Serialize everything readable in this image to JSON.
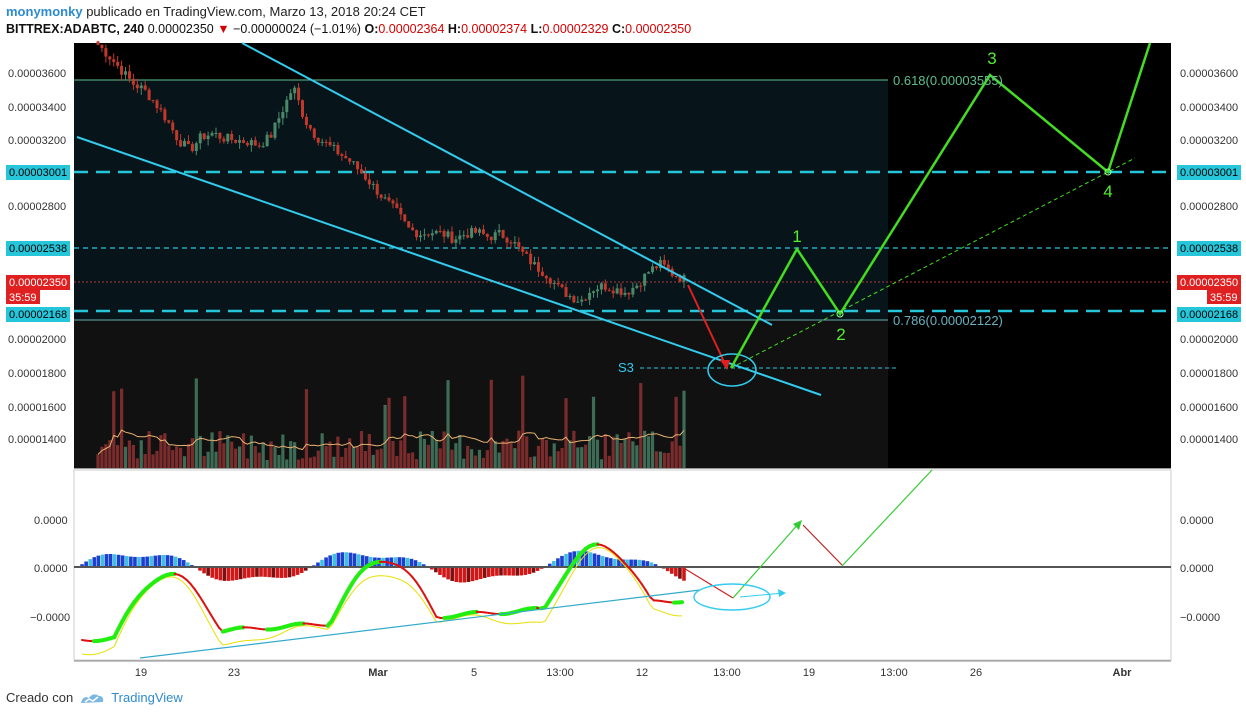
{
  "header": {
    "user": "monymonky",
    "published": "publicado en TradingView.com, Marzo 13, 2018 20:24 CET",
    "symbol": "BITTREX:ADABTC, 240",
    "last": "0.00002350",
    "change": "−0.00000024 (−1.01%)",
    "o_label": "O:",
    "o": "0.00002364",
    "h_label": "H:",
    "h": "0.00002374",
    "l_label": "L:",
    "l": "0.00002329",
    "c_label": "C:",
    "c": "0.00002350"
  },
  "footer": {
    "created_with": "Creado con",
    "brand": "TradingView"
  },
  "colors": {
    "up": "#4a8a6a",
    "down": "#c0392b",
    "cyan": "#26c6da",
    "green": "#2ecc40",
    "trend": "#33ccee",
    "dark_bg": "#000000",
    "panel_bg": "#07151b"
  },
  "chart_data": {
    "type": "line",
    "price_axis": {
      "labels": [
        "0.00003600",
        "0.00003400",
        "0.00003200",
        "0.00002800",
        "0.00002000",
        "0.00001800",
        "0.00001600",
        "0.00001400"
      ],
      "range": [
        1.22e-05,
        3.76e-05
      ]
    },
    "marked_prices": {
      "level_3001": "0.00003001",
      "level_2538": "0.00002538",
      "current": "0.00002350",
      "countdown": "35:59",
      "level_2168": "0.00002168"
    },
    "fib_labels": {
      "f618": "0.618(0.00003555)",
      "f786": "0.786(0.00002122)"
    },
    "wave_labels": [
      "1",
      "2",
      "3",
      "4"
    ],
    "support_label": "S3",
    "x_axis_labels": [
      "19",
      "23",
      "Mar",
      "5",
      "13:00",
      "12",
      "13:00",
      "19",
      "13:00",
      "26",
      "Abr"
    ],
    "price_path_close": [
      3.75e-05,
      3.68e-05,
      3.6e-05,
      3.52e-05,
      3.48e-05,
      3.4e-05,
      3.3e-05,
      3.18e-05,
      3.12e-05,
      3.2e-05,
      3.22e-05,
      3.19e-05,
      3.18e-05,
      3.17e-05,
      3.15e-05,
      3.2e-05,
      3.35e-05,
      3.5e-05,
      3.3e-05,
      3.2e-05,
      3.15e-05,
      3.1e-05,
      3.05e-05,
      2.98e-05,
      2.9e-05,
      2.82e-05,
      2.75e-05,
      2.65e-05,
      2.62e-05,
      2.63e-05,
      2.62e-05,
      2.59e-05,
      2.62e-05,
      2.63e-05,
      2.6e-05,
      2.62e-05,
      2.58e-05,
      2.5e-05,
      2.43e-05,
      2.38e-05,
      2.3e-05,
      2.25e-05,
      2.22e-05,
      2.29e-05,
      2.31e-05,
      2.29e-05,
      2.27e-05,
      2.32e-05,
      2.4e-05,
      2.44e-05,
      2.38e-05,
      2.35e-05
    ],
    "wave_projection": [
      {
        "label": "start",
        "price": 1.8e-05
      },
      {
        "label": "1",
        "price": 2.54e-05
      },
      {
        "label": "2",
        "price": 2.15e-05
      },
      {
        "label": "3",
        "price": 3.56e-05
      },
      {
        "label": "4",
        "price": 3e-05
      }
    ],
    "oscillator_axis": {
      "labels": [
        "0.0000",
        "0.0000",
        "−0.0000"
      ]
    }
  }
}
